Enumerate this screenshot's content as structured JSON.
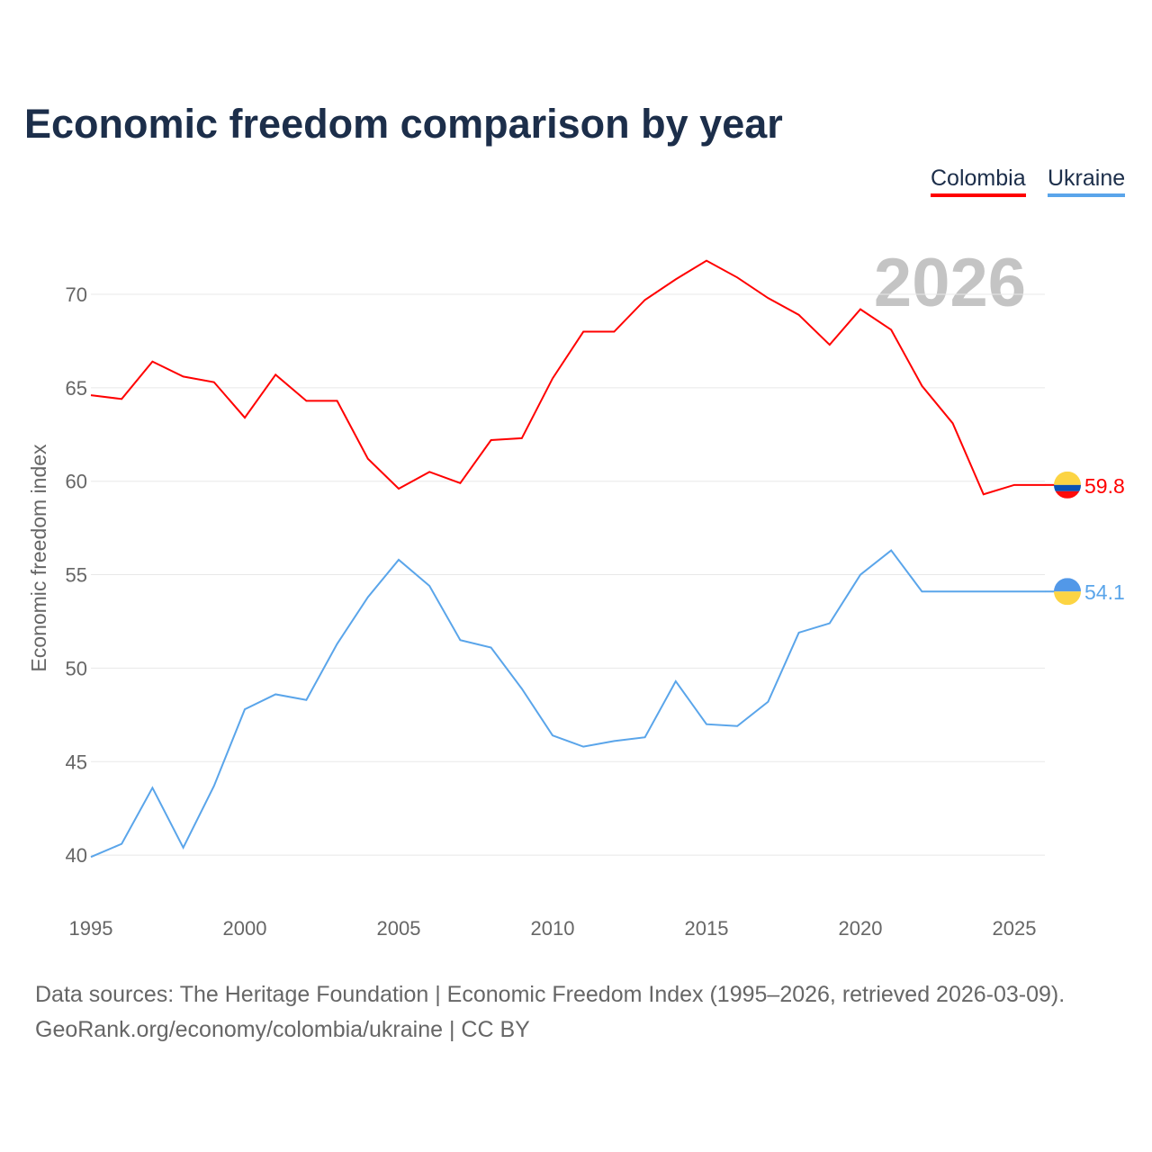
{
  "title": "Economic freedom comparison by year",
  "watermark_year": "2026",
  "source_line1": "Data sources: The Heritage Foundation | Economic Freedom Index (1995–2026, retrieved 2026-03-09).",
  "source_line2": "GeoRank.org/economy/colombia/ukraine | CC BY",
  "chart_data": {
    "type": "line",
    "title": "Economic freedom comparison by year",
    "xlabel": "",
    "ylabel": "Economic freedom index",
    "xlim": [
      1995,
      2026
    ],
    "ylim": [
      37,
      74
    ],
    "xticks": [
      1995,
      2000,
      2005,
      2010,
      2015,
      2020,
      2025
    ],
    "yticks": [
      40,
      45,
      50,
      55,
      60,
      65,
      70
    ],
    "grid": true,
    "legend": "top-right",
    "x": [
      1995,
      1996,
      1997,
      1998,
      1999,
      2000,
      2001,
      2002,
      2003,
      2004,
      2005,
      2006,
      2007,
      2008,
      2009,
      2010,
      2011,
      2012,
      2013,
      2014,
      2015,
      2016,
      2017,
      2018,
      2019,
      2020,
      2021,
      2022,
      2023,
      2024,
      2025,
      2026
    ],
    "series": [
      {
        "name": "Colombia",
        "color": "#ff0000",
        "end_label": "59.8",
        "flag": "colombia-flag",
        "values": [
          64.6,
          64.4,
          66.4,
          65.6,
          65.3,
          63.4,
          65.7,
          64.3,
          64.3,
          61.2,
          59.6,
          60.5,
          59.9,
          62.2,
          62.3,
          65.5,
          68.0,
          68.0,
          69.7,
          70.8,
          71.8,
          70.9,
          69.8,
          68.9,
          67.3,
          69.2,
          68.1,
          65.1,
          63.1,
          59.3,
          59.8,
          59.8
        ]
      },
      {
        "name": "Ukraine",
        "color": "#5aa5ea",
        "end_label": "54.1",
        "flag": "ukraine-flag",
        "values": [
          39.9,
          40.6,
          43.6,
          40.4,
          43.7,
          47.8,
          48.6,
          48.3,
          51.3,
          53.8,
          55.8,
          54.4,
          51.5,
          51.1,
          48.9,
          46.4,
          45.8,
          46.1,
          46.3,
          49.3,
          47.0,
          46.9,
          48.2,
          51.9,
          52.4,
          55.0,
          56.3,
          54.1,
          54.1,
          54.1,
          54.1,
          54.1
        ]
      }
    ]
  }
}
